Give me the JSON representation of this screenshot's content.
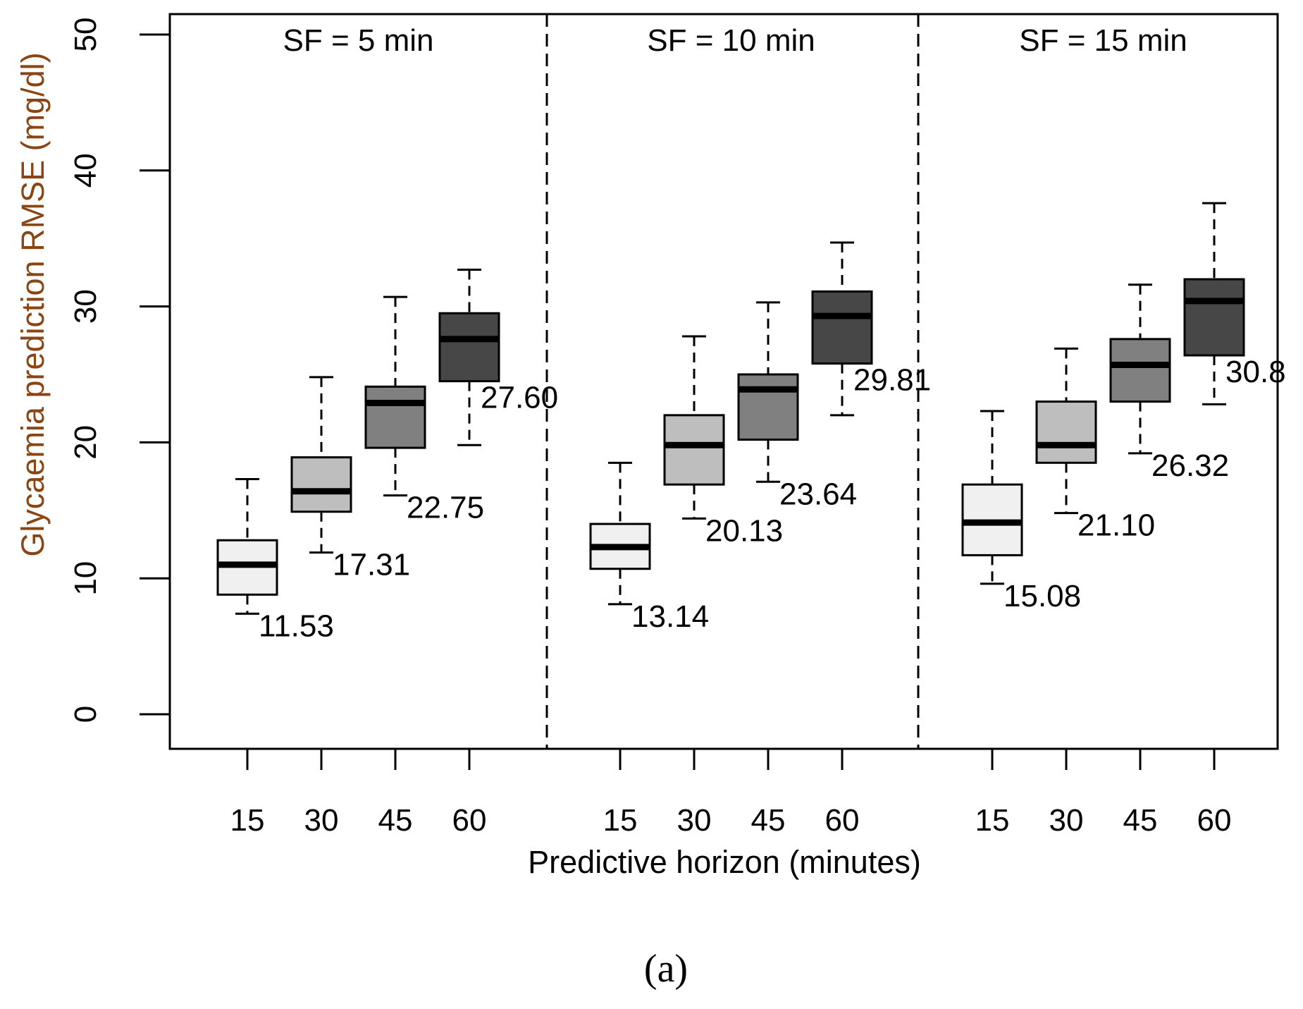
{
  "chart_data": {
    "type": "boxplot",
    "ylabel": "Glycaemia prediction RMSE (mg/dl)",
    "xlabel": "Predictive horizon (minutes)",
    "ylim": [
      0,
      50
    ],
    "yticks": [
      "0",
      "10",
      "20",
      "30",
      "40",
      "50"
    ],
    "caption": "(a)",
    "box_colors": {
      "15": "#f0f0f0",
      "30": "#bebebe",
      "45": "#808080",
      "60": "#474747"
    },
    "panels": [
      {
        "title": "SF = 5 min",
        "boxes": [
          {
            "horizon": "15",
            "whisker_low": 7.4,
            "q1": 8.8,
            "median": 11.0,
            "q3": 12.8,
            "whisker_high": 17.3,
            "mean_label": "11.53"
          },
          {
            "horizon": "30",
            "whisker_low": 11.9,
            "q1": 14.9,
            "median": 16.4,
            "q3": 18.9,
            "whisker_high": 24.8,
            "mean_label": "17.31"
          },
          {
            "horizon": "45",
            "whisker_low": 16.1,
            "q1": 19.6,
            "median": 22.9,
            "q3": 24.1,
            "whisker_high": 30.7,
            "mean_label": "22.75"
          },
          {
            "horizon": "60",
            "whisker_low": 19.8,
            "q1": 24.5,
            "median": 27.6,
            "q3": 29.5,
            "whisker_high": 32.7,
            "mean_label": "27.60"
          }
        ]
      },
      {
        "title": "SF = 10 min",
        "boxes": [
          {
            "horizon": "15",
            "whisker_low": 8.1,
            "q1": 10.7,
            "median": 12.3,
            "q3": 14.0,
            "whisker_high": 18.5,
            "mean_label": "13.14"
          },
          {
            "horizon": "30",
            "whisker_low": 14.4,
            "q1": 16.9,
            "median": 19.8,
            "q3": 22.0,
            "whisker_high": 27.8,
            "mean_label": "20.13"
          },
          {
            "horizon": "45",
            "whisker_low": 17.1,
            "q1": 20.2,
            "median": 23.9,
            "q3": 25.0,
            "whisker_high": 30.3,
            "mean_label": "23.64"
          },
          {
            "horizon": "60",
            "whisker_low": 22.0,
            "q1": 25.8,
            "median": 29.3,
            "q3": 31.1,
            "whisker_high": 34.7,
            "mean_label": "29.81"
          }
        ]
      },
      {
        "title": "SF = 15 min",
        "boxes": [
          {
            "horizon": "15",
            "whisker_low": 9.6,
            "q1": 11.7,
            "median": 14.1,
            "q3": 16.9,
            "whisker_high": 22.3,
            "mean_label": "15.08"
          },
          {
            "horizon": "30",
            "whisker_low": 14.8,
            "q1": 18.5,
            "median": 19.8,
            "q3": 23.0,
            "whisker_high": 26.9,
            "mean_label": "21.10"
          },
          {
            "horizon": "45",
            "whisker_low": 19.2,
            "q1": 23.0,
            "median": 25.7,
            "q3": 27.6,
            "whisker_high": 31.6,
            "mean_label": "26.32"
          },
          {
            "horizon": "60",
            "whisker_low": 22.8,
            "q1": 26.4,
            "median": 30.4,
            "q3": 32.0,
            "whisker_high": 37.6,
            "mean_label": "30.8"
          }
        ]
      }
    ]
  }
}
